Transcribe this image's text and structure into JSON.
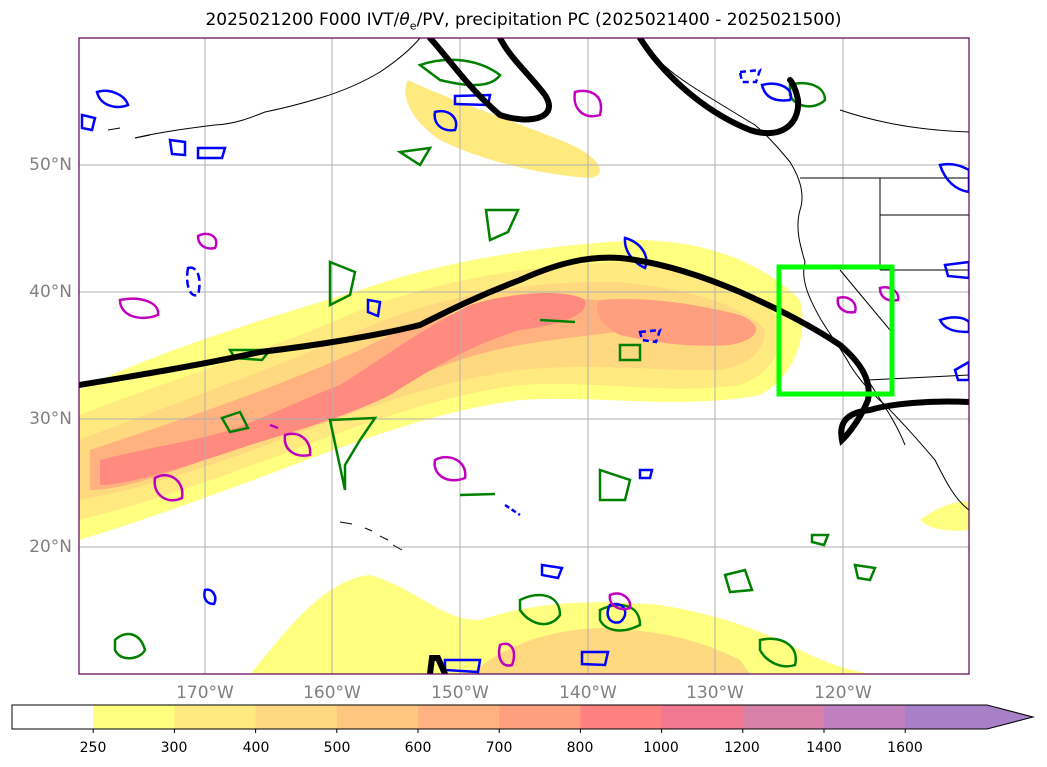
{
  "title": {
    "pre": "2025021200 F000 IVT/",
    "theta": "θ",
    "sub": "e",
    "post": "/PV, precipitation PC (2025021400 - 2025021500)"
  },
  "map": {
    "lat_labels": [
      "50°N",
      "40°N",
      "30°N",
      "20°N"
    ],
    "lon_labels": [
      "170°W",
      "160°W",
      "150°W",
      "140°W",
      "130°W",
      "120°W"
    ],
    "layers": {
      "ivt_fill": "IVT shaded contours",
      "pv_contour_color": "#000000",
      "theta_e_colors": [
        "#008000",
        "#0000ff",
        "#c000c0"
      ],
      "precip_box_color": "#00ff00"
    }
  },
  "colorbar": {
    "ticks": [
      "250",
      "300",
      "400",
      "500",
      "600",
      "700",
      "800",
      "1000",
      "1200",
      "1400",
      "1600"
    ],
    "colors": [
      "#ffffff",
      "#ffff80",
      "#ffea80",
      "#ffd980",
      "#ffc680",
      "#ffb280",
      "#ff9f80",
      "#ff8080",
      "#f07890",
      "#d880a8",
      "#c080c0",
      "#a880c8"
    ]
  }
}
